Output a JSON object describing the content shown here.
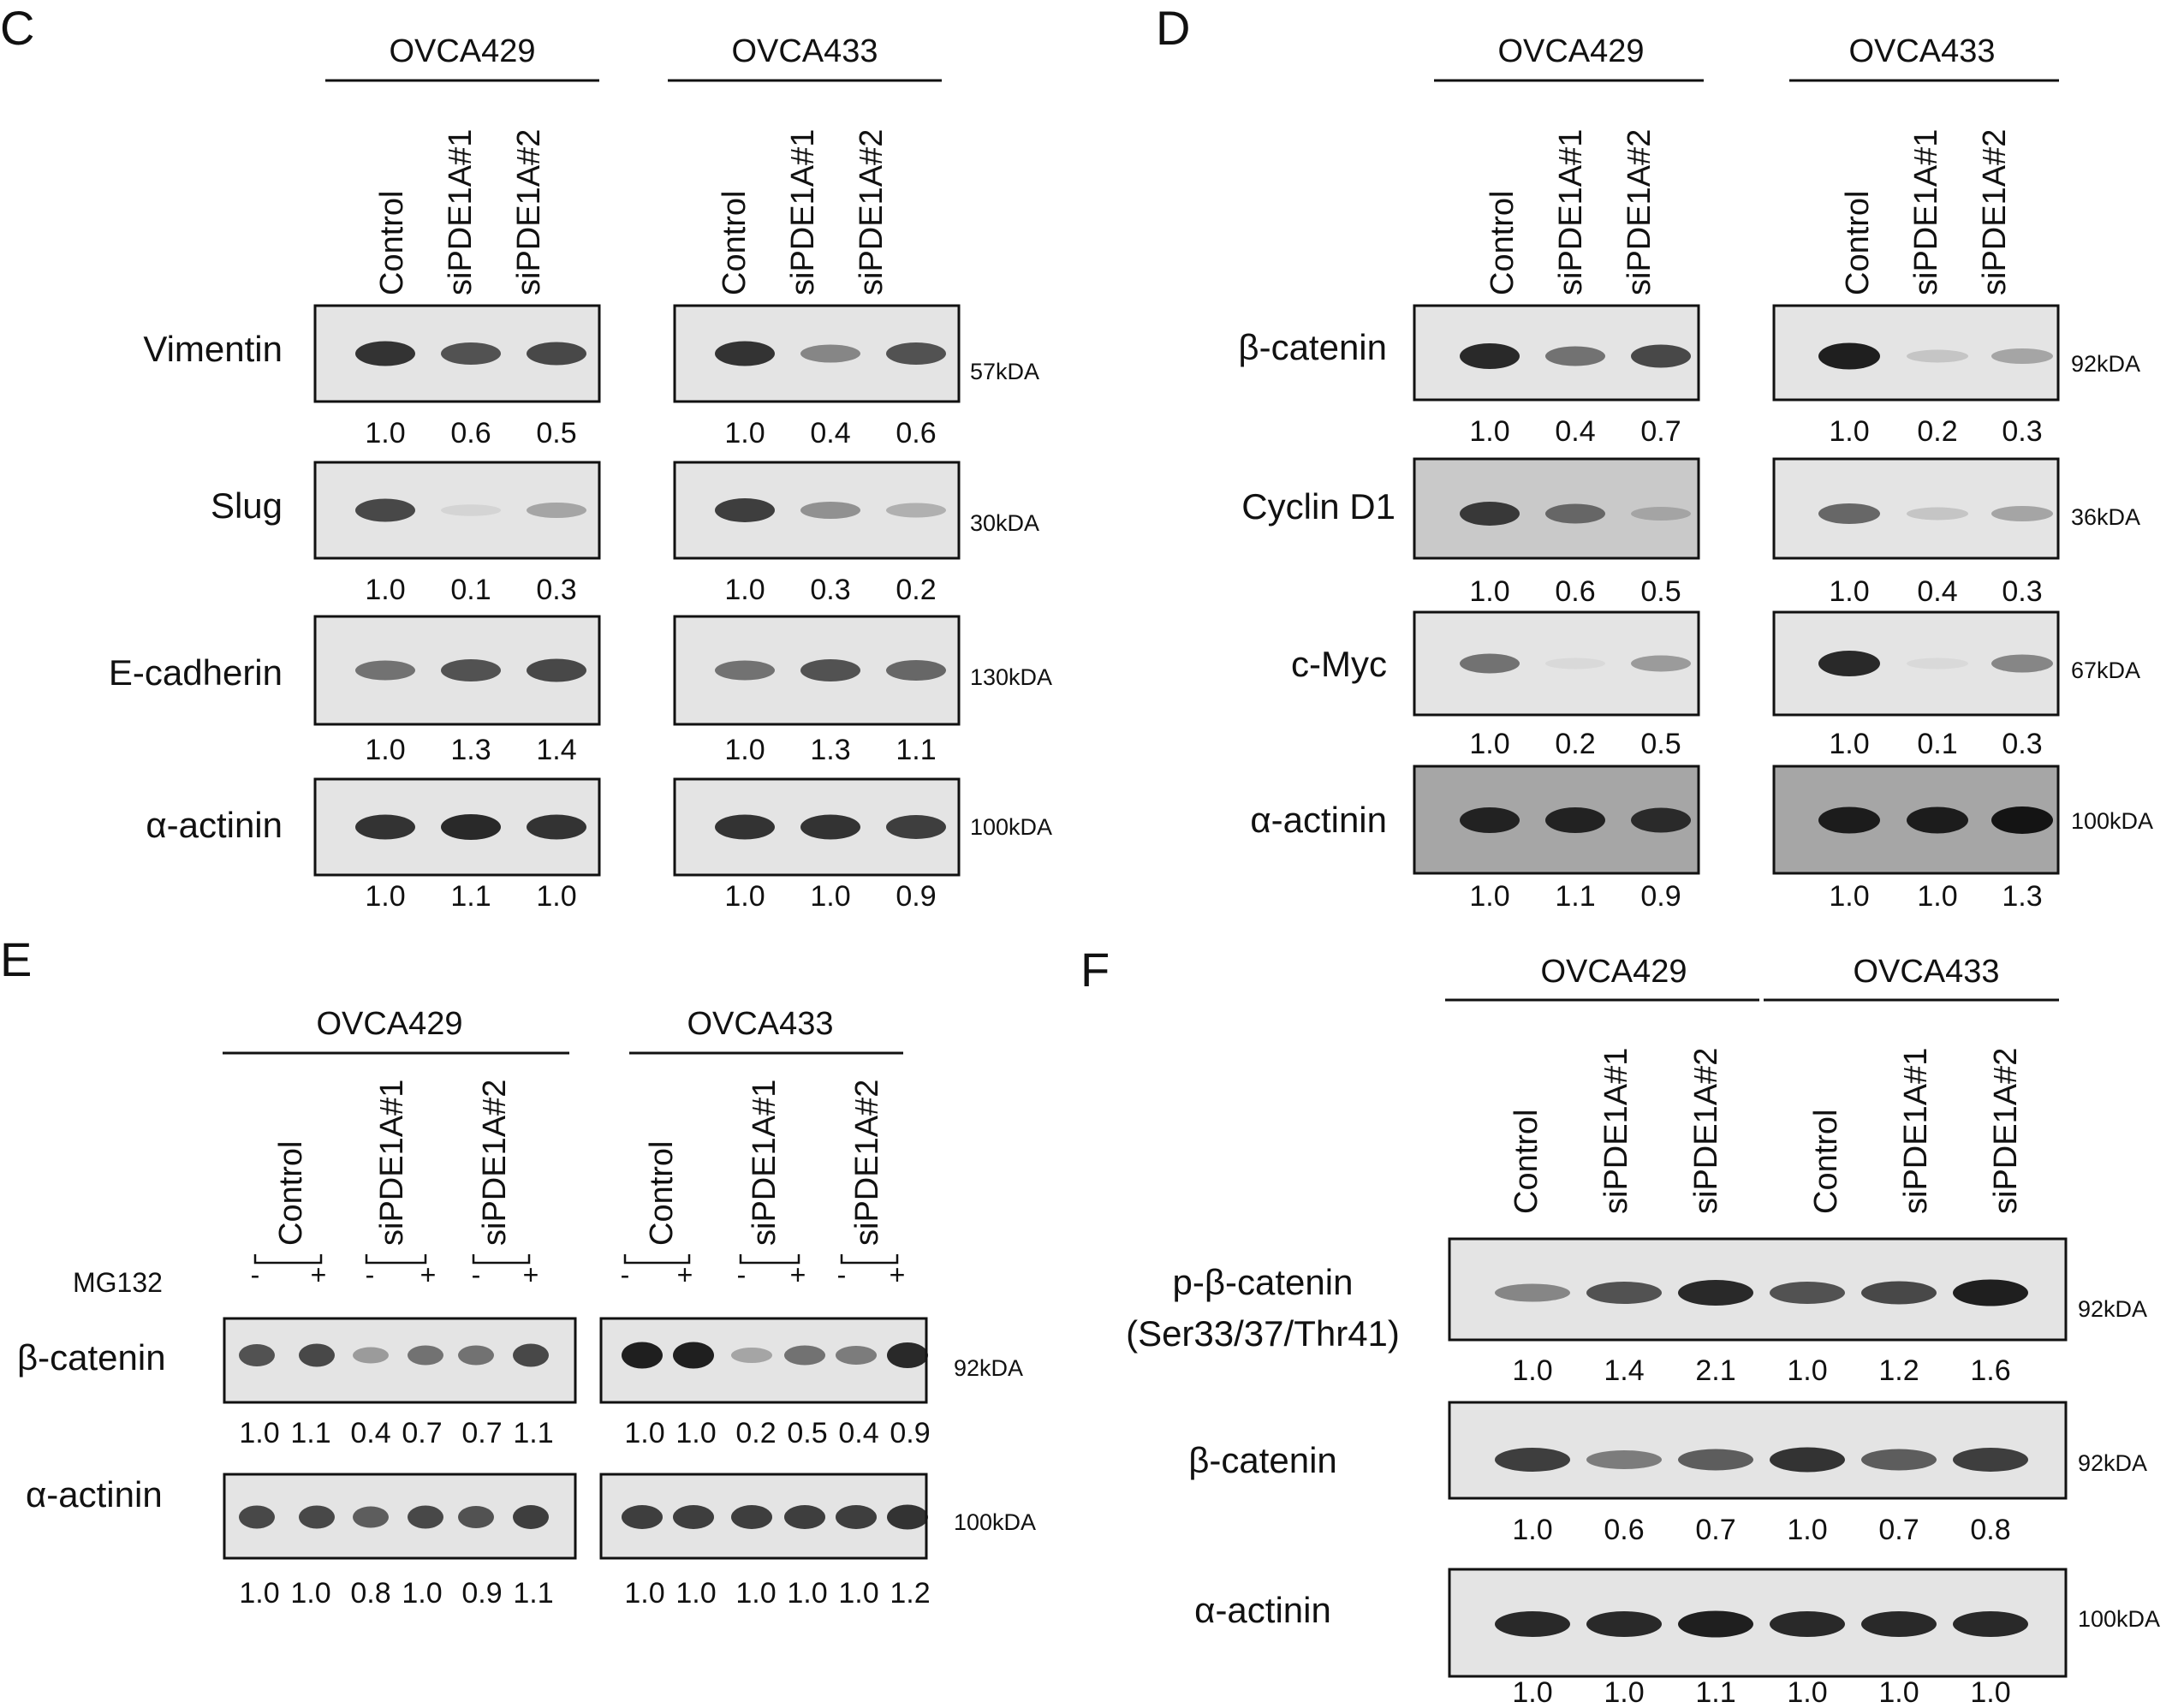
{
  "panels": {
    "C": {
      "letter": "C",
      "cells": [
        "OVCA429",
        "OVCA433"
      ],
      "lanes": [
        "Control",
        "siPDE1A#1",
        "siPDE1A#2"
      ],
      "rows": [
        {
          "protein": "Vimentin",
          "kda": "57kDA",
          "v1": [
            "1.0",
            "0.6",
            "0.5"
          ],
          "v2": [
            "1.0",
            "0.4",
            "0.6"
          ],
          "b1": [
            0.85,
            0.7,
            0.75
          ],
          "b2": [
            0.85,
            0.45,
            0.7
          ]
        },
        {
          "protein": "Slug",
          "kda": "30kDA",
          "v1": [
            "1.0",
            "0.1",
            "0.3"
          ],
          "v2": [
            "1.0",
            "0.3",
            "0.2"
          ],
          "b1": [
            0.75,
            0.08,
            0.3
          ],
          "b2": [
            0.8,
            0.4,
            0.25
          ]
        },
        {
          "protein": "E-cadherin",
          "kda": "130kDA",
          "v1": [
            "1.0",
            "1.3",
            "1.4"
          ],
          "v2": [
            "1.0",
            "1.3",
            "1.1"
          ],
          "b1": [
            0.55,
            0.7,
            0.75
          ],
          "b2": [
            0.55,
            0.7,
            0.6
          ]
        },
        {
          "protein": "α-actinin",
          "kda": "100kDA",
          "v1": [
            "1.0",
            "1.1",
            "1.0"
          ],
          "v2": [
            "1.0",
            "1.0",
            "0.9"
          ],
          "b1": [
            0.85,
            0.9,
            0.85
          ],
          "b2": [
            0.85,
            0.85,
            0.8
          ]
        }
      ]
    },
    "D": {
      "letter": "D",
      "cells": [
        "OVCA429",
        "OVCA433"
      ],
      "lanes": [
        "Control",
        "siPDE1A#1",
        "siPDE1A#2"
      ],
      "rows": [
        {
          "protein": "β-catenin",
          "kda": "92kDA",
          "v1": [
            "1.0",
            "0.4",
            "0.7"
          ],
          "v2": [
            "1.0",
            "0.2",
            "0.3"
          ],
          "b1": [
            0.9,
            0.55,
            0.75
          ],
          "b2": [
            0.95,
            0.15,
            0.3
          ]
        },
        {
          "protein": "Cyclin D1",
          "kda": "36kDA",
          "v1": [
            "1.0",
            "0.6",
            "0.5"
          ],
          "v2": [
            "1.0",
            "0.4",
            "0.3"
          ],
          "b1": [
            0.8,
            0.55,
            0.2
          ],
          "b2": [
            0.6,
            0.15,
            0.3
          ]
        },
        {
          "protein": "c-Myc",
          "kda": "67kDA",
          "v1": [
            "1.0",
            "0.2",
            "0.5"
          ],
          "v2": [
            "1.0",
            "0.1",
            "0.3"
          ],
          "b1": [
            0.55,
            0.05,
            0.35
          ],
          "b2": [
            0.9,
            0.05,
            0.45
          ]
        },
        {
          "protein": "α-actinin",
          "kda": "100kDA",
          "v1": [
            "1.0",
            "1.1",
            "0.9"
          ],
          "v2": [
            "1.0",
            "1.0",
            "1.3"
          ],
          "b1": [
            0.9,
            0.9,
            0.85
          ],
          "b2": [
            0.95,
            0.95,
            1.0
          ]
        }
      ]
    },
    "E": {
      "letter": "E",
      "cells": [
        "OVCA429",
        "OVCA433"
      ],
      "lanes": [
        "Control",
        "siPDE1A#1",
        "siPDE1A#2"
      ],
      "treatment": "MG132",
      "signs": [
        "-",
        "+"
      ],
      "rows": [
        {
          "protein": "β-catenin",
          "kda": "92kDA",
          "v1": [
            "1.0",
            "1.1",
            "0.4",
            "0.7",
            "0.7",
            "1.1"
          ],
          "v2": [
            "1.0",
            "1.0",
            "0.2",
            "0.5",
            "0.4",
            "0.9"
          ],
          "b1": [
            0.7,
            0.75,
            0.35,
            0.55,
            0.55,
            0.75
          ],
          "b2": [
            0.95,
            0.95,
            0.3,
            0.55,
            0.5,
            0.9
          ]
        },
        {
          "protein": "α-actinin",
          "kda": "100kDA",
          "v1": [
            "1.0",
            "1.0",
            "0.8",
            "1.0",
            "0.9",
            "1.1"
          ],
          "v2": [
            "1.0",
            "1.0",
            "1.0",
            "1.0",
            "1.0",
            "1.2"
          ],
          "b1": [
            0.75,
            0.75,
            0.65,
            0.75,
            0.7,
            0.8
          ],
          "b2": [
            0.8,
            0.8,
            0.8,
            0.8,
            0.8,
            0.85
          ]
        }
      ]
    },
    "F": {
      "letter": "F",
      "cells": [
        "OVCA429",
        "OVCA433"
      ],
      "lanes": [
        "Control",
        "siPDE1A#1",
        "siPDE1A#2",
        "Control",
        "siPDE1A#1",
        "siPDE1A#2"
      ],
      "rows": [
        {
          "protein": "p-β-catenin",
          "protein2": "(Ser33/37/Thr41)",
          "kda": "92kDA",
          "v": [
            "1.0",
            "1.4",
            "2.1",
            "1.0",
            "1.2",
            "1.6"
          ],
          "b": [
            0.45,
            0.7,
            0.9,
            0.7,
            0.75,
            0.95
          ]
        },
        {
          "protein": "β-catenin",
          "kda": "92kDA",
          "v": [
            "1.0",
            "0.6",
            "0.7",
            "1.0",
            "0.7",
            "0.8"
          ],
          "b": [
            0.8,
            0.5,
            0.65,
            0.85,
            0.65,
            0.8
          ]
        },
        {
          "protein": "α-actinin",
          "kda": "100kDA",
          "v": [
            "1.0",
            "1.0",
            "1.1",
            "1.0",
            "1.0",
            "1.0"
          ],
          "b": [
            0.9,
            0.9,
            0.95,
            0.9,
            0.9,
            0.9
          ]
        }
      ]
    }
  },
  "colors": {
    "ink": "#111111",
    "band": "#141414",
    "membrane_light": "#e4e4e4",
    "membrane_gray": "#c9c9c9",
    "membrane_dark": "#a6a6a6"
  }
}
